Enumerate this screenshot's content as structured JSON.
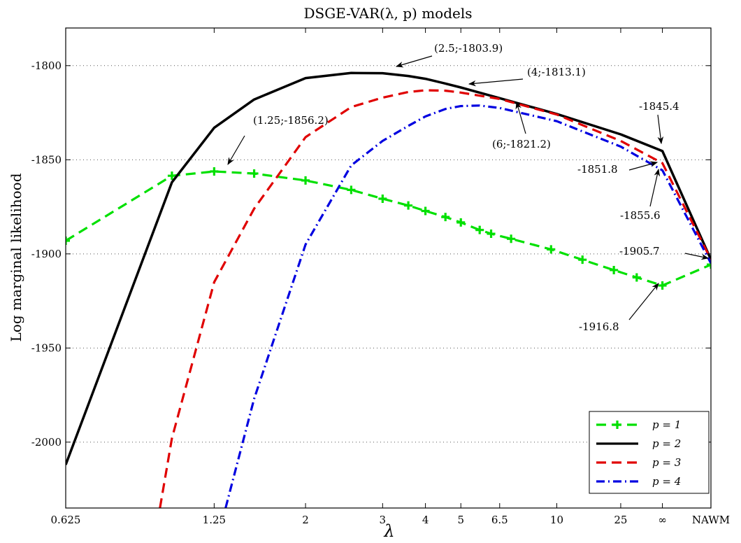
{
  "chart_data": {
    "type": "line",
    "title": "DSGE-VAR(λ, p) models",
    "xlabel": "λ",
    "ylabel": "Log marginal likelihood",
    "ylim": [
      -2035,
      -1780
    ],
    "yticks": [
      -1800,
      -1850,
      -1900,
      -1950,
      -2000
    ],
    "ytick_labels": [
      "-1800",
      "-1850",
      "-1900",
      "-1950",
      "-2000"
    ],
    "xtick_labels": [
      "0.625",
      "1.25",
      "2",
      "3",
      "4",
      "5",
      "6.5",
      "10",
      "25",
      "∞",
      "NAWM"
    ],
    "xtick_pos": [
      0.0,
      2.6,
      4.2,
      5.55,
      6.3,
      6.92,
      7.6,
      8.6,
      9.72,
      10.45,
      11.3
    ],
    "xlim": [
      0.0,
      11.3
    ],
    "grid": "horizontal dotted",
    "legend_position": "bottom-right",
    "series": [
      {
        "name": "p = 1",
        "color": "#00e000",
        "style": "dashed-plus",
        "x": [
          0.0,
          1.86,
          2.6,
          3.3,
          4.2,
          5.0,
          5.55,
          6.0,
          6.3,
          6.65,
          6.92,
          7.25,
          7.45,
          7.8,
          8.5,
          9.05,
          9.6,
          10.0,
          10.45,
          11.3
        ],
        "values": [
          -1893.0,
          -1858.5,
          -1856.2,
          -1857.3,
          -1861.0,
          -1866.0,
          -1870.7,
          -1874.3,
          -1877.2,
          -1880.4,
          -1883.3,
          -1887.3,
          -1889.3,
          -1892.0,
          -1897.6,
          -1903.1,
          -1908.6,
          -1912.5,
          -1916.8,
          -1905.7
        ]
      },
      {
        "name": "p = 2",
        "color": "#000000",
        "style": "solid",
        "x": [
          0.0,
          1.86,
          2.6,
          3.3,
          4.2,
          5.0,
          5.55,
          6.0,
          6.3,
          6.65,
          6.92,
          7.6,
          8.6,
          9.72,
          10.45,
          11.3
        ],
        "values": [
          -2012.0,
          -1862.0,
          -1833.0,
          -1818.0,
          -1806.6,
          -1803.9,
          -1804.0,
          -1805.5,
          -1807.0,
          -1809.5,
          -1811.6,
          -1817.3,
          -1825.7,
          -1836.5,
          -1845.4,
          -1903.0
        ]
      },
      {
        "name": "p = 3",
        "color": "#e00000",
        "style": "dashed",
        "x": [
          1.65,
          1.86,
          2.6,
          3.3,
          4.2,
          5.0,
          5.55,
          6.0,
          6.3,
          6.65,
          6.92,
          7.6,
          8.6,
          9.72,
          10.45,
          11.3
        ],
        "values": [
          -2035.0,
          -1998.0,
          -1915.0,
          -1876.0,
          -1838.0,
          -1822.0,
          -1817.0,
          -1814.0,
          -1813.1,
          -1813.3,
          -1814.3,
          -1817.7,
          -1826.0,
          -1840.0,
          -1851.8,
          -1903.0
        ]
      },
      {
        "name": "p = 4",
        "color": "#0000e0",
        "style": "dash-dot",
        "x": [
          2.8,
          3.3,
          4.2,
          5.0,
          5.55,
          6.0,
          6.3,
          6.65,
          6.92,
          7.25,
          7.6,
          8.6,
          9.72,
          10.45,
          11.3
        ],
        "values": [
          -2035.0,
          -1977.0,
          -1895.0,
          -1853.0,
          -1840.0,
          -1832.0,
          -1827.0,
          -1823.0,
          -1821.5,
          -1821.2,
          -1822.5,
          -1829.5,
          -1843.0,
          -1855.6,
          -1905.0
        ]
      }
    ],
    "annotations": [
      {
        "text": "(2.5;-1803.9)",
        "x": 5.1,
        "y": -1803.9
      },
      {
        "text": "(4;-1813.1)",
        "x": 6.3,
        "y": -1813.1
      },
      {
        "text": "(1.25;-1856.2)",
        "x": 2.6,
        "y": -1856.2
      },
      {
        "text": "(6;-1821.2)",
        "x": 7.25,
        "y": -1821.2
      },
      {
        "text": "-1845.4",
        "x": 10.45,
        "y": -1845.4
      },
      {
        "text": "-1851.8",
        "x": 10.45,
        "y": -1851.8
      },
      {
        "text": "-1855.6",
        "x": 10.45,
        "y": -1855.6
      },
      {
        "text": "-1905.7",
        "x": 11.3,
        "y": -1905.7
      },
      {
        "text": "-1916.8",
        "x": 10.45,
        "y": -1916.8
      }
    ]
  }
}
